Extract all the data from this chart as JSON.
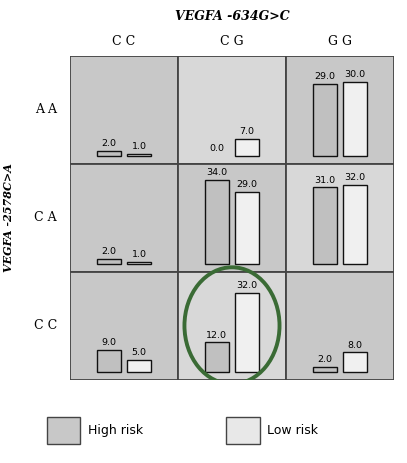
{
  "title": "VEGFA -634G>C",
  "col_labels": [
    "C C",
    "C G",
    "G G"
  ],
  "row_labels": [
    "A A",
    "C A",
    "C C"
  ],
  "ylabel": "VEGFA -2578C>A",
  "bar_data": {
    "AA_CC": [
      2.0,
      1.0
    ],
    "AA_CG": [
      0.0,
      7.0
    ],
    "AA_GG": [
      29.0,
      30.0
    ],
    "CA_CC": [
      2.0,
      1.0
    ],
    "CA_CG": [
      34.0,
      29.0
    ],
    "CA_GG": [
      31.0,
      32.0
    ],
    "CC_CC": [
      9.0,
      5.0
    ],
    "CC_CG": [
      12.0,
      32.0
    ],
    "CC_GG": [
      2.0,
      8.0
    ]
  },
  "cell_bg": [
    [
      "#c8c8c8",
      "#d8d8d8",
      "#c8c8c8"
    ],
    [
      "#c8c8c8",
      "#c8c8c8",
      "#d8d8d8"
    ],
    [
      "#c8c8c8",
      "#d8d8d8",
      "#c8c8c8"
    ]
  ],
  "left_bar_color": "#c0c0c0",
  "right_bar_color": "#f0f0f0",
  "bar_edge": "#111111",
  "circle_cell_row": 2,
  "circle_cell_col": 1,
  "circle_color": "#3a6b35",
  "max_val": 34.0,
  "legend_high_color": "#c8c8c8",
  "legend_low_color": "#e8e8e8",
  "grid_line_color": "#444444",
  "outer_border_color": "#444444"
}
